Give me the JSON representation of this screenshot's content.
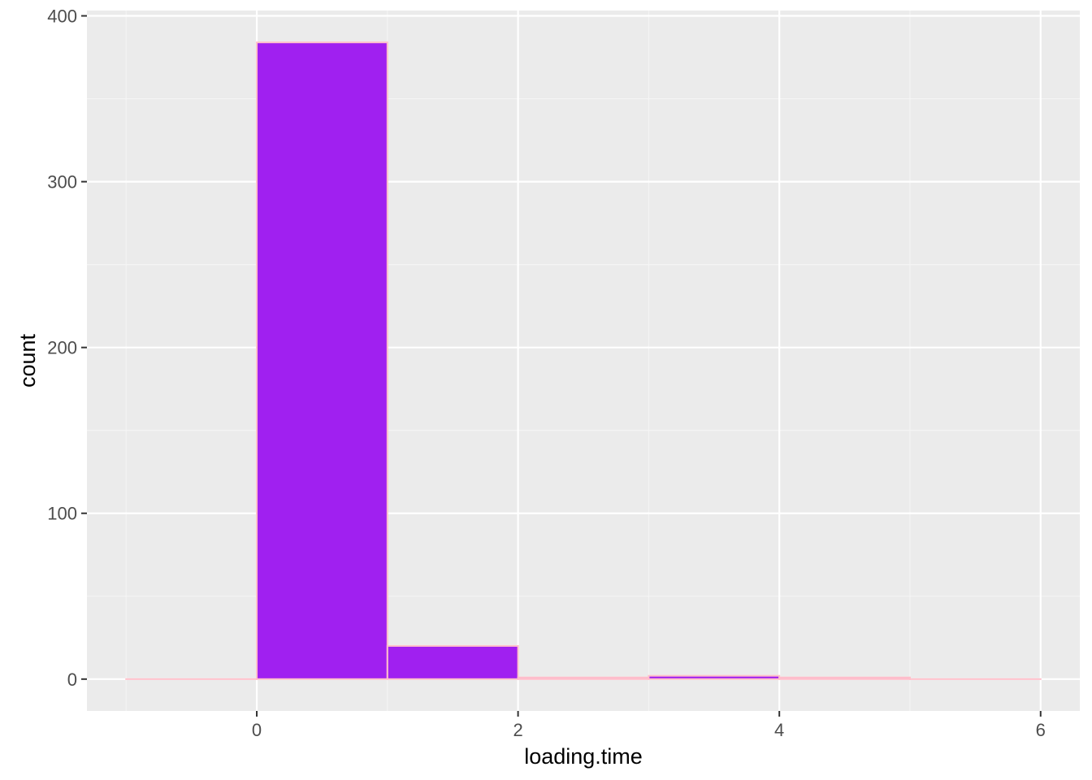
{
  "chart_data": {
    "type": "bar",
    "subtype": "histogram",
    "title": "",
    "xlabel": "loading.time",
    "ylabel": "count",
    "bin_width": 1,
    "bins": [
      {
        "x_start": -1,
        "x_end": 0,
        "count": 0
      },
      {
        "x_start": 0,
        "x_end": 1,
        "count": 384
      },
      {
        "x_start": 1,
        "x_end": 2,
        "count": 20
      },
      {
        "x_start": 2,
        "x_end": 3,
        "count": 1
      },
      {
        "x_start": 3,
        "x_end": 4,
        "count": 2
      },
      {
        "x_start": 4,
        "x_end": 5,
        "count": 1
      },
      {
        "x_start": 5,
        "x_end": 6,
        "count": 0
      }
    ],
    "xlim": [
      -1.3,
      6.3
    ],
    "ylim": [
      -19.2,
      403.2
    ],
    "x_ticks": [
      0,
      2,
      4,
      6
    ],
    "y_ticks": [
      0,
      100,
      200,
      300,
      400
    ],
    "grid": true,
    "legend": "none",
    "colors": {
      "panel_background": "#EBEBEB",
      "grid_major": "#FFFFFF",
      "grid_minor": "#F5F5F5",
      "bar_fill": "#A020F0",
      "bar_outline": "#FFC0CB",
      "tick_text": "#4D4D4D",
      "tick_mark": "#333333"
    }
  }
}
